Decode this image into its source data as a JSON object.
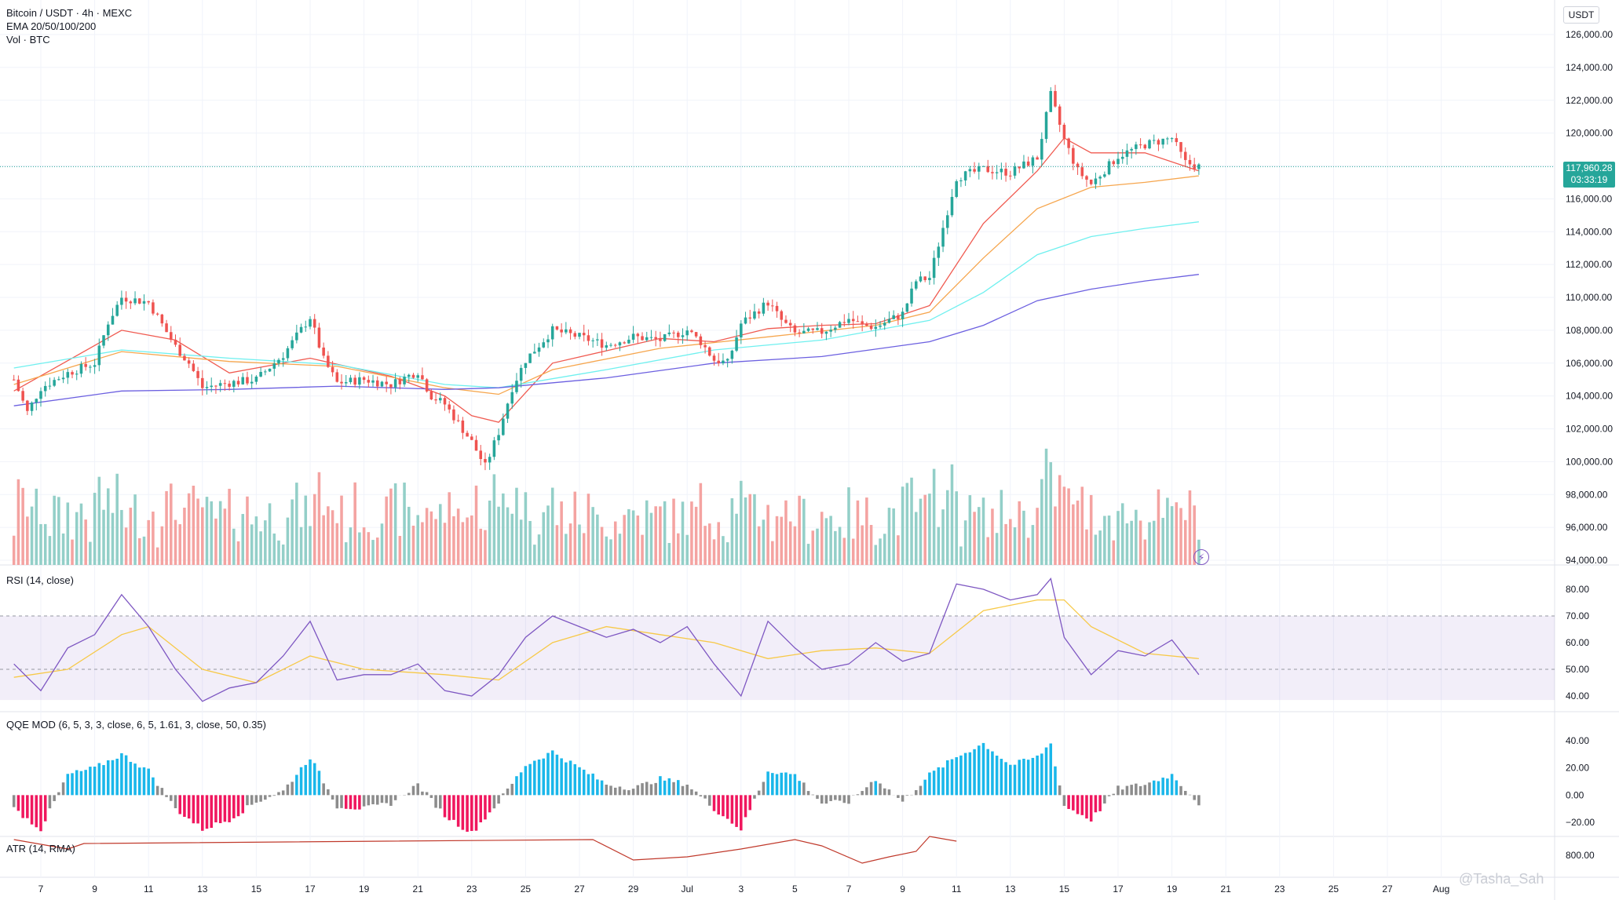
{
  "header": {
    "symbol": "Bitcoin / USDT · 4h · MEXC",
    "ema": "EMA 20/50/100/200",
    "vol": "Vol · BTC"
  },
  "price_axis": {
    "unit": "USDT",
    "last_price": "117,960.28",
    "countdown": "03:33:19"
  },
  "panes": {
    "rsi": "RSI (14, close)",
    "qqe": "QQE MOD (6, 5, 3, 3, close, 6, 5, 1.61, 3, close, 50, 0.35)",
    "atr": "ATR (14, RMA)"
  },
  "watermark": "@Tasha_Sah",
  "colors": {
    "up": "#26a69a",
    "down": "#ef5350",
    "vol_up": "#93cfc8",
    "vol_down": "#f4a3a1",
    "ema20": "#f05a50",
    "ema50": "#f6a64e",
    "ema100": "#6ff0ef",
    "ema200": "#6b5fe0",
    "rsi": "#7e57c2",
    "rsi_ma": "#f7c948",
    "qqe_up": "#1ab7ea",
    "qqe_down": "#f0175e",
    "qqe_neutral": "#8c8c8c",
    "atr": "#c0392b"
  },
  "chart_data": [
    {
      "type": "candlestick",
      "title": "Bitcoin / USDT · 4h · MEXC",
      "x_ticks": [
        "7",
        "9",
        "11",
        "13",
        "15",
        "17",
        "19",
        "21",
        "23",
        "25",
        "27",
        "29",
        "Jul",
        "3",
        "5",
        "7",
        "9",
        "11",
        "13",
        "15",
        "17",
        "19",
        "21",
        "23",
        "25",
        "27",
        "Aug"
      ],
      "y_ticks": [
        "126,000.00",
        "124,000.00",
        "122,000.00",
        "120,000.00",
        "118,000.00",
        "116,000.00",
        "114,000.00",
        "112,000.00",
        "110,000.00",
        "108,000.00",
        "106,000.00",
        "104,000.00",
        "102,000.00",
        "100,000.00",
        "98,000.00",
        "96,000.00",
        "94,000.00"
      ],
      "ylim": [
        94000,
        127000
      ],
      "last_price": 117960.28,
      "close_points_by_day": [
        [
          6,
          105000
        ],
        [
          6.5,
          103000
        ],
        [
          7,
          104500
        ],
        [
          8,
          105400
        ],
        [
          9,
          106000
        ],
        [
          9.5,
          108500
        ],
        [
          10,
          110000
        ],
        [
          11,
          109700
        ],
        [
          12,
          107000
        ],
        [
          12.5,
          106000
        ],
        [
          13,
          104500
        ],
        [
          14,
          104800
        ],
        [
          15,
          105000
        ],
        [
          16,
          106500
        ],
        [
          17,
          108800
        ],
        [
          17.5,
          106200
        ],
        [
          18,
          104800
        ],
        [
          19,
          105000
        ],
        [
          20,
          104700
        ],
        [
          21,
          105500
        ],
        [
          21.5,
          104000
        ],
        [
          22,
          103500
        ],
        [
          23,
          101200
        ],
        [
          23.5,
          99700
        ],
        [
          24,
          101800
        ],
        [
          24.5,
          104500
        ],
        [
          25,
          106200
        ],
        [
          26,
          108000
        ],
        [
          27,
          107600
        ],
        [
          28,
          107100
        ],
        [
          29,
          107600
        ],
        [
          30,
          107400
        ],
        [
          31,
          108000
        ],
        [
          31.5,
          107300
        ],
        [
          32,
          106200
        ],
        [
          32.5,
          106000
        ],
        [
          33,
          108400
        ],
        [
          34,
          109700
        ],
        [
          34.5,
          108600
        ],
        [
          35,
          107800
        ],
        [
          36,
          107900
        ],
        [
          37,
          108700
        ],
        [
          37.5,
          108300
        ],
        [
          38,
          108200
        ],
        [
          39,
          109000
        ],
        [
          39.5,
          111000
        ],
        [
          40,
          111200
        ],
        [
          41,
          117300
        ],
        [
          42,
          117800
        ],
        [
          43,
          117600
        ],
        [
          44,
          118500
        ],
        [
          44.5,
          122300
        ],
        [
          45,
          119600
        ],
        [
          45.5,
          117700
        ],
        [
          46,
          116900
        ],
        [
          47,
          118600
        ],
        [
          48,
          119300
        ],
        [
          49,
          119700
        ],
        [
          49.5,
          118200
        ],
        [
          50,
          117960
        ]
      ],
      "ema_points_by_day": {
        "EMA 20": [
          [
            6,
            104300
          ],
          [
            10,
            108000
          ],
          [
            12,
            107400
          ],
          [
            14,
            105400
          ],
          [
            17,
            106300
          ],
          [
            20,
            105200
          ],
          [
            22,
            104000
          ],
          [
            23,
            102800
          ],
          [
            24,
            102400
          ],
          [
            26,
            106000
          ],
          [
            30,
            107500
          ],
          [
            32,
            107300
          ],
          [
            34,
            108100
          ],
          [
            36,
            108300
          ],
          [
            38,
            108400
          ],
          [
            40,
            109500
          ],
          [
            42,
            114500
          ],
          [
            44,
            117700
          ],
          [
            45,
            119700
          ],
          [
            46,
            118800
          ],
          [
            48,
            118800
          ],
          [
            50,
            117700
          ]
        ],
        "EMA 50": [
          [
            6,
            104700
          ],
          [
            10,
            106700
          ],
          [
            14,
            106100
          ],
          [
            18,
            105800
          ],
          [
            22,
            104500
          ],
          [
            24,
            104100
          ],
          [
            26,
            105600
          ],
          [
            30,
            106900
          ],
          [
            34,
            107600
          ],
          [
            38,
            108300
          ],
          [
            40,
            109100
          ],
          [
            42,
            112400
          ],
          [
            44,
            115400
          ],
          [
            46,
            116700
          ],
          [
            48,
            117000
          ],
          [
            50,
            117400
          ]
        ],
        "EMA 100": [
          [
            6,
            105700
          ],
          [
            10,
            106800
          ],
          [
            14,
            106300
          ],
          [
            18,
            105900
          ],
          [
            22,
            104700
          ],
          [
            24,
            104500
          ],
          [
            28,
            105600
          ],
          [
            32,
            106800
          ],
          [
            36,
            107400
          ],
          [
            40,
            108600
          ],
          [
            42,
            110300
          ],
          [
            44,
            112600
          ],
          [
            46,
            113700
          ],
          [
            48,
            114200
          ],
          [
            50,
            114600
          ]
        ],
        "EMA 200": [
          [
            6,
            103400
          ],
          [
            10,
            104300
          ],
          [
            14,
            104400
          ],
          [
            18,
            104600
          ],
          [
            22,
            104400
          ],
          [
            24,
            104500
          ],
          [
            28,
            105100
          ],
          [
            32,
            106000
          ],
          [
            36,
            106400
          ],
          [
            40,
            107300
          ],
          [
            42,
            108300
          ],
          [
            44,
            109800
          ],
          [
            46,
            110500
          ],
          [
            48,
            111000
          ],
          [
            50,
            111400
          ]
        ]
      }
    },
    {
      "type": "line",
      "title": "RSI (14, close)",
      "y_ticks": [
        "80.00",
        "70.00",
        "60.00",
        "50.00",
        "40.00"
      ],
      "band": [
        30,
        70
      ],
      "midline": 50,
      "rsi_points_by_day": [
        [
          6,
          52
        ],
        [
          7,
          42
        ],
        [
          8,
          58
        ],
        [
          9,
          63
        ],
        [
          10,
          78
        ],
        [
          11,
          66
        ],
        [
          12,
          50
        ],
        [
          13,
          38
        ],
        [
          14,
          43
        ],
        [
          15,
          45
        ],
        [
          16,
          55
        ],
        [
          17,
          68
        ],
        [
          18,
          46
        ],
        [
          19,
          48
        ],
        [
          20,
          48
        ],
        [
          21,
          52
        ],
        [
          22,
          42
        ],
        [
          23,
          40
        ],
        [
          24,
          48
        ],
        [
          25,
          62
        ],
        [
          26,
          70
        ],
        [
          27,
          66
        ],
        [
          28,
          62
        ],
        [
          29,
          65
        ],
        [
          30,
          60
        ],
        [
          31,
          66
        ],
        [
          32,
          52
        ],
        [
          33,
          40
        ],
        [
          34,
          68
        ],
        [
          35,
          58
        ],
        [
          36,
          50
        ],
        [
          37,
          52
        ],
        [
          38,
          60
        ],
        [
          39,
          53
        ],
        [
          40,
          56
        ],
        [
          41,
          82
        ],
        [
          42,
          80
        ],
        [
          43,
          76
        ],
        [
          44,
          78
        ],
        [
          44.5,
          84
        ],
        [
          45,
          62
        ],
        [
          46,
          48
        ],
        [
          47,
          57
        ],
        [
          48,
          55
        ],
        [
          49,
          61
        ],
        [
          50,
          48
        ]
      ],
      "ma_points_by_day": [
        [
          6,
          47
        ],
        [
          8,
          50
        ],
        [
          10,
          63
        ],
        [
          11,
          66
        ],
        [
          13,
          50
        ],
        [
          15,
          45
        ],
        [
          17,
          55
        ],
        [
          19,
          50
        ],
        [
          22,
          48
        ],
        [
          24,
          46
        ],
        [
          26,
          60
        ],
        [
          28,
          66
        ],
        [
          30,
          63
        ],
        [
          32,
          60
        ],
        [
          34,
          54
        ],
        [
          36,
          57
        ],
        [
          38,
          58
        ],
        [
          40,
          56
        ],
        [
          42,
          72
        ],
        [
          44,
          76
        ],
        [
          45,
          76
        ],
        [
          46,
          66
        ],
        [
          48,
          56
        ],
        [
          50,
          54
        ]
      ]
    },
    {
      "type": "bar",
      "title": "QQE MOD (6, 5, 3, 3, close, 6, 5, 1.61, 3, close, 50, 0.35)",
      "y_ticks": [
        "40.00",
        "20.00",
        "0.00",
        "−20.00"
      ],
      "histogram_by_day": [
        [
          6,
          -10
        ],
        [
          7,
          -25
        ],
        [
          8,
          15
        ],
        [
          9,
          20
        ],
        [
          10,
          30
        ],
        [
          11,
          18
        ],
        [
          12,
          -10
        ],
        [
          13,
          -25
        ],
        [
          14,
          -18
        ],
        [
          15,
          -5
        ],
        [
          16,
          3
        ],
        [
          17,
          28
        ],
        [
          18,
          -8
        ],
        [
          19,
          -10
        ],
        [
          20,
          -6
        ],
        [
          21,
          8
        ],
        [
          22,
          -15
        ],
        [
          23,
          -28
        ],
        [
          24,
          -5
        ],
        [
          25,
          22
        ],
        [
          26,
          32
        ],
        [
          27,
          20
        ],
        [
          28,
          8
        ],
        [
          29,
          5
        ],
        [
          30,
          12
        ],
        [
          31,
          8
        ],
        [
          32,
          -10
        ],
        [
          33,
          -25
        ],
        [
          34,
          18
        ],
        [
          35,
          15
        ],
        [
          36,
          -6
        ],
        [
          37,
          -5
        ],
        [
          38,
          12
        ],
        [
          39,
          -5
        ],
        [
          40,
          15
        ],
        [
          41,
          28
        ],
        [
          42,
          38
        ],
        [
          43,
          22
        ],
        [
          44,
          28
        ],
        [
          44.5,
          38
        ],
        [
          45,
          -8
        ],
        [
          46,
          -18
        ],
        [
          47,
          5
        ],
        [
          48,
          8
        ],
        [
          49,
          15
        ],
        [
          50,
          -6
        ]
      ]
    },
    {
      "type": "line",
      "title": "ATR (14, RMA)",
      "y_ticks": [
        "800.00"
      ]
    }
  ]
}
